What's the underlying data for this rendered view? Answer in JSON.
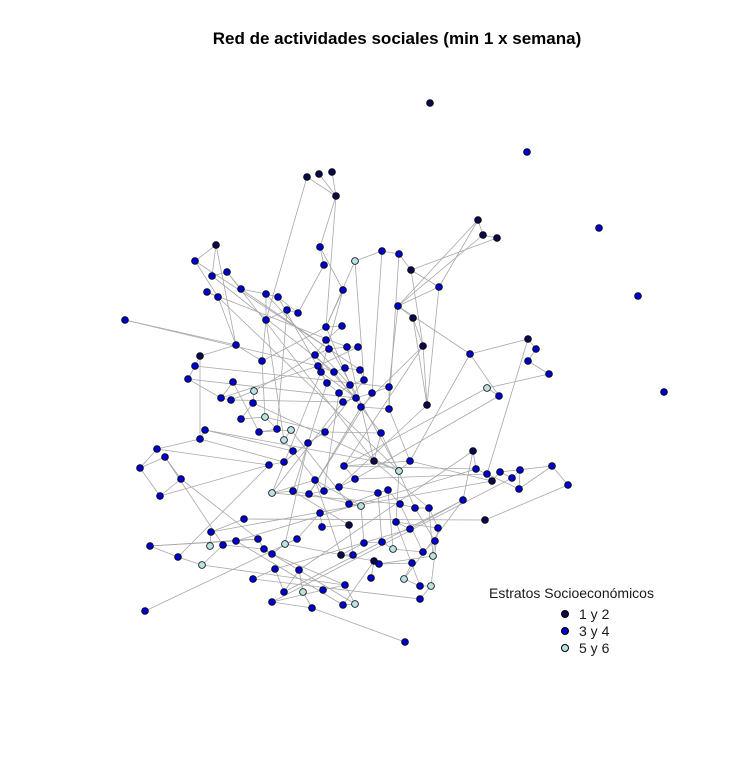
{
  "title": "Red de actividades sociales (min 1 x semana)",
  "legend": {
    "title": "Estratos Socioeconómicos",
    "items": [
      {
        "label": "1 y 2",
        "color": "#0a0a4a"
      },
      {
        "label": "3 y 4",
        "color": "#0000cd"
      },
      {
        "label": "5 y 6",
        "color": "#b9e3e3"
      }
    ]
  },
  "colors": {
    "edge": "#a8a8a8",
    "node_border": "#000000"
  }
}
